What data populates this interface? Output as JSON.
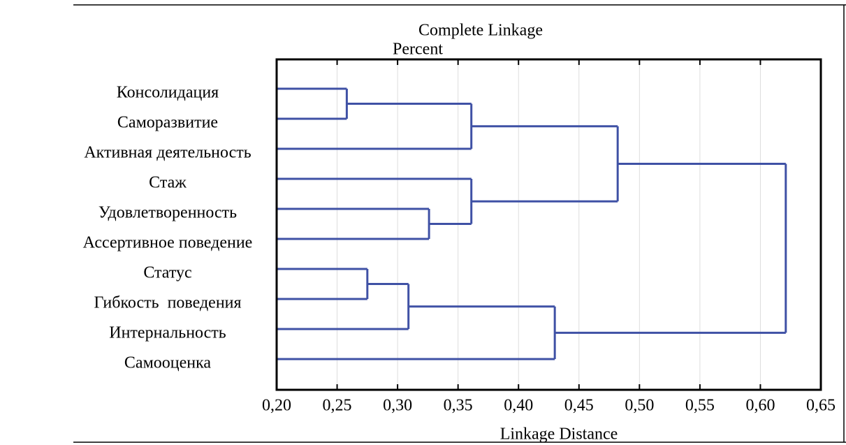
{
  "chart_data": {
    "type": "dendrogram",
    "title": "Complete Linkage",
    "subtitle": "Percent",
    "xlabel": "Linkage Distance",
    "color": "#3f51a5",
    "xlim": [
      0.2,
      0.65
    ],
    "xticks": [
      {
        "value": 0.2,
        "label": "0,20"
      },
      {
        "value": 0.25,
        "label": "0,25"
      },
      {
        "value": 0.3,
        "label": "0,30"
      },
      {
        "value": 0.35,
        "label": "0,35"
      },
      {
        "value": 0.4,
        "label": "0,40"
      },
      {
        "value": 0.45,
        "label": "0,45"
      },
      {
        "value": 0.5,
        "label": "0,50"
      },
      {
        "value": 0.55,
        "label": "0,55"
      },
      {
        "value": 0.6,
        "label": "0,60"
      },
      {
        "value": 0.65,
        "label": "0,65"
      }
    ],
    "grid": true,
    "tree": {
      "height": 0.621,
      "children": [
        {
          "height": 0.482,
          "children": [
            {
              "height": 0.361,
              "children": [
                {
                  "height": 0.258,
                  "children": [
                    "Консолидация",
                    "Саморазвитие"
                  ]
                },
                "Активная деятельность"
              ]
            },
            {
              "height": 0.361,
              "children": [
                "Стаж",
                {
                  "height": 0.326,
                  "children": [
                    "Удовлетворенность",
                    "Ассертивное поведение"
                  ]
                }
              ]
            }
          ]
        },
        {
          "height": 0.43,
          "children": [
            {
              "height": 0.309,
              "children": [
                {
                  "height": 0.275,
                  "children": [
                    "Статус",
                    "Гибкость  поведения"
                  ]
                },
                "Интернальность"
              ]
            },
            "Самооценка"
          ]
        }
      ]
    }
  }
}
